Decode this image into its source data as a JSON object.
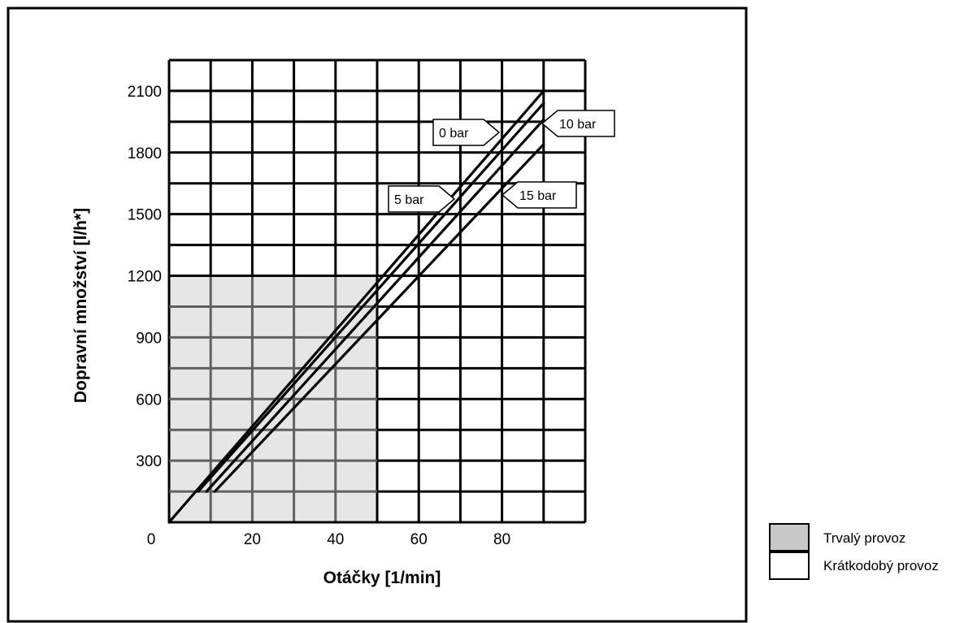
{
  "chart_data": {
    "type": "line",
    "xlabel": "Otáčky  [1/min]",
    "ylabel": "Dopravní množství  [l/h*]",
    "xlim": [
      0,
      100
    ],
    "ylim": [
      0,
      2250
    ],
    "x_ticks": [
      0,
      20,
      40,
      60,
      80
    ],
    "y_ticks": [
      300,
      600,
      900,
      1200,
      1500,
      1800,
      2100
    ],
    "grid": true,
    "series": [
      {
        "name": "0 bar",
        "x": [
          0,
          90
        ],
        "y": [
          0,
          2100
        ]
      },
      {
        "name": "5 bar",
        "x": [
          7,
          90
        ],
        "y": [
          150,
          2040
        ]
      },
      {
        "name": "10 bar",
        "x": [
          9,
          90
        ],
        "y": [
          150,
          1960
        ]
      },
      {
        "name": "15 bar",
        "x": [
          11,
          90
        ],
        "y": [
          150,
          1840
        ]
      }
    ],
    "regions": [
      {
        "label": "Trvalý provoz",
        "x": [
          0,
          50
        ],
        "y": [
          0,
          1200
        ],
        "color": "#e6e6e6"
      }
    ],
    "legend": {
      "position": "bottom-right",
      "items": [
        {
          "label": "Trvalý provoz",
          "color": "#c8c8c8"
        },
        {
          "label": "Krátkodobý provoz",
          "color": "#ffffff"
        }
      ]
    }
  }
}
